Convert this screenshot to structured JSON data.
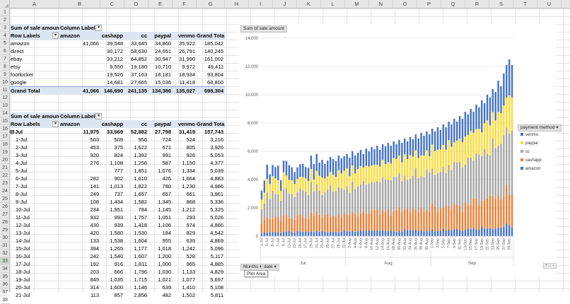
{
  "columns": [
    "A",
    "B",
    "C",
    "D",
    "E",
    "F",
    "G",
    "H",
    "I",
    "J",
    "K",
    "L",
    "M",
    "N",
    "O",
    "P",
    "Q",
    "R",
    "S",
    "T",
    "U"
  ],
  "rows": [
    "1",
    "2",
    "3",
    "4",
    "5",
    "6",
    "7",
    "8",
    "9",
    "10",
    "11",
    "12",
    "13",
    "14",
    "15",
    "16",
    "17",
    "18",
    "19",
    "20",
    "21",
    "22",
    "23",
    "24",
    "25",
    "26",
    "27",
    "28",
    "29",
    "30",
    "31",
    "32",
    "33",
    "34",
    "35",
    "36",
    "37",
    "38"
  ],
  "selected_row": "33",
  "pivot1": {
    "title": "Sum of sale amount",
    "col_labels": "Column Labels",
    "row_labels": "Row Labels",
    "headers": [
      "amazon",
      "cashapp",
      "cc",
      "paypal",
      "venmo",
      "Grand Total"
    ],
    "rows": [
      {
        "label": "amazon",
        "values": [
          "41,066",
          "39,548",
          "33,645",
          "34,860",
          "35,922",
          "185,042"
        ]
      },
      {
        "label": "direct",
        "values": [
          "",
          "30,172",
          "58,630",
          "24,651",
          "26,791",
          "140,245"
        ]
      },
      {
        "label": "ebay",
        "values": [
          "",
          "33,212",
          "64,852",
          "30,947",
          "31,990",
          "161,002"
        ]
      },
      {
        "label": "etsy",
        "values": [
          "",
          "9,550",
          "19,180",
          "10,710",
          "9,972",
          "49,411"
        ]
      },
      {
        "label": "footlocker",
        "values": [
          "",
          "19,526",
          "37,163",
          "18,181",
          "18,934",
          "93,804"
        ]
      },
      {
        "label": "google",
        "values": [
          "",
          "14,681",
          "27,665",
          "15,036",
          "11,418",
          "68,800"
        ]
      }
    ],
    "total": {
      "label": "Grand Total",
      "values": [
        "41,066",
        "146,690",
        "241,135",
        "134,386",
        "135,027",
        "698,304"
      ]
    }
  },
  "pivot2": {
    "title": "Sum of sale amount",
    "col_labels": "Column Labels",
    "row_labels": "Row Labels",
    "headers": [
      "amazon",
      "cashapp",
      "cc",
      "paypal",
      "venmo",
      "Grand Total"
    ],
    "group": {
      "label": "Jul",
      "values": [
        "11,975",
        "33,669",
        "52,882",
        "27,798",
        "31,419",
        "157,743"
      ]
    },
    "rows": [
      {
        "label": "1-Jul",
        "values": [
          "503",
          "509",
          "956",
          "724",
          "524",
          "3,216"
        ]
      },
      {
        "label": "2-Jul",
        "values": [
          "453",
          "375",
          "1,622",
          "671",
          "805",
          "3,926"
        ]
      },
      {
        "label": "3-Jul",
        "values": [
          "920",
          "824",
          "1,392",
          "991",
          "926",
          "5,053"
        ]
      },
      {
        "label": "4-Jul",
        "values": [
          "276",
          "1,108",
          "1,256",
          "587",
          "1,150",
          "4,377"
        ]
      },
      {
        "label": "5-Jul",
        "values": [
          "",
          "777",
          "1,851",
          "1,076",
          "1,334",
          "5,039"
        ]
      },
      {
        "label": "6-Jul",
        "values": [
          "282",
          "902",
          "1,610",
          "426",
          "1,664",
          "4,883"
        ]
      },
      {
        "label": "7-Jul",
        "values": [
          "141",
          "1,013",
          "1,822",
          "780",
          "1,230",
          "4,986"
        ]
      },
      {
        "label": "8-Jul",
        "values": [
          "249",
          "737",
          "1,657",
          "657",
          "661",
          "3,961"
        ]
      },
      {
        "label": "9-Jul",
        "values": [
          "108",
          "1,434",
          "1,582",
          "1,345",
          "868",
          "5,336"
        ]
      },
      {
        "label": "10-Jul",
        "values": [
          "234",
          "1,951",
          "784",
          "1,145",
          "1,212",
          "5,325"
        ]
      },
      {
        "label": "11-Jul",
        "values": [
          "932",
          "993",
          "1,757",
          "1,051",
          "293",
          "5,026"
        ]
      },
      {
        "label": "12-Jul",
        "values": [
          "430",
          "939",
          "1,418",
          "1,106",
          "974",
          "4,866"
        ]
      },
      {
        "label": "13-Jul",
        "values": [
          "420",
          "1,580",
          "1,530",
          "184",
          "829",
          "4,542"
        ]
      },
      {
        "label": "14-Jul",
        "values": [
          "133",
          "1,538",
          "1,604",
          "955",
          "639",
          "4,869"
        ]
      },
      {
        "label": "15-Jul",
        "values": [
          "394",
          "1,265",
          "1,177",
          "1,018",
          "1,242",
          "5,096"
        ]
      },
      {
        "label": "16-Jul",
        "values": [
          "242",
          "1,540",
          "1,607",
          "1,200",
          "528",
          "5,117"
        ]
      },
      {
        "label": "17-Jul",
        "values": [
          "192",
          "916",
          "1,811",
          "1,000",
          "965",
          "4,885"
        ]
      },
      {
        "label": "18-Jul",
        "values": [
          "203",
          "666",
          "1,796",
          "1,030",
          "1,133",
          "4,829"
        ]
      },
      {
        "label": "19-Jul",
        "values": [
          "849",
          "1,035",
          "1,715",
          "1,021",
          "1,077",
          "5,697"
        ]
      },
      {
        "label": "20-Jul",
        "values": [
          "314",
          "1,600",
          "1,146",
          "639",
          "1,410",
          "5,108"
        ]
      },
      {
        "label": "21-Jul",
        "values": [
          "113",
          "857",
          "2,856",
          "482",
          "1,502",
          "5,811"
        ]
      }
    ]
  },
  "chart": {
    "field_button_values": "Sum of sale amount",
    "field_button_axis": "Months",
    "field_button_axis2": "date",
    "legend_title": "payment method",
    "tooltip": "Plot Area",
    "colors": {
      "venmo": "#4472c4",
      "paypal": "#ffd92f",
      "cc": "#a5a5a5",
      "cashapp": "#ed7d31",
      "amazon": "#4472c4"
    }
  },
  "chart_data": {
    "type": "bar",
    "stacked": true,
    "ylim": [
      0,
      14000
    ],
    "yticks": [
      "0",
      "2,000",
      "4,000",
      "6,000",
      "8,000",
      "10,000",
      "12,000",
      "14,000"
    ],
    "ytick_values": [
      0,
      2000,
      4000,
      6000,
      8000,
      10000,
      12000,
      14000
    ],
    "month_labels": [
      "Jul",
      "Aug",
      "Sep"
    ],
    "day_labels": [
      "1-Jul",
      "3-Jul",
      "5-Jul",
      "7-Jul",
      "9-Jul",
      "11-Jul",
      "13-Jul",
      "15-Jul",
      "17-Jul",
      "19-Jul",
      "21-Jul",
      "23-Jul",
      "25-Jul",
      "27-Jul",
      "29-Jul",
      "31-Jul",
      "2-Aug",
      "4-Aug",
      "6-Aug",
      "8-Aug",
      "10-Aug",
      "12-Aug",
      "14-Aug",
      "16-Aug",
      "18-Aug",
      "20-Aug",
      "22-Aug",
      "24-Aug",
      "26-Aug",
      "28-Aug",
      "30-Aug",
      "1-Sep",
      "3-Sep",
      "5-Sep",
      "7-Sep",
      "9-Sep",
      "11-Sep",
      "13-Sep",
      "15-Sep",
      "17-Sep",
      "19-Sep",
      "21-Sep",
      "23-Sep",
      "25-Sep",
      "27-Sep",
      "29-Sep"
    ],
    "legend": [
      {
        "name": "venmo",
        "color": "#4472c4"
      },
      {
        "name": "paypal",
        "color": "#ffd92f"
      },
      {
        "name": "cc",
        "color": "#a5a5a5"
      },
      {
        "name": "cashapp",
        "color": "#ed7d31"
      },
      {
        "name": "amazon",
        "color": "#4472c4"
      }
    ],
    "series_order": [
      "amazon",
      "cashapp",
      "cc",
      "paypal",
      "venmo"
    ],
    "series_colors": [
      "#4472c4",
      "#ed7d31",
      "#a5a5a5",
      "#ffd92f",
      "#4472c4"
    ],
    "days": 92,
    "totals": [
      3216,
      3926,
      5053,
      4377,
      5039,
      4883,
      4986,
      3961,
      5336,
      5325,
      5026,
      4866,
      4542,
      4869,
      5096,
      5117,
      4885,
      4829,
      5697,
      5108,
      5811,
      5200,
      5400,
      5100,
      5350,
      5600,
      5450,
      5300,
      5700,
      5500,
      5650,
      5800,
      5550,
      6000,
      5700,
      5900,
      6100,
      5800,
      6200,
      6000,
      6300,
      6150,
      6400,
      6100,
      6500,
      6350,
      6600,
      6400,
      6700,
      6500,
      6800,
      6600,
      6900,
      6700,
      7000,
      6850,
      7200,
      6900,
      7300,
      7100,
      7400,
      7200,
      7600,
      7400,
      7700,
      7500,
      7900,
      7700,
      8100,
      7900,
      8300,
      8100,
      8500,
      8300,
      8800,
      8600,
      9000,
      8800,
      9300,
      9100,
      9600,
      9400,
      10000,
      9800,
      10400,
      10200,
      11000,
      10600,
      11500,
      12100,
      12500,
      12100
    ],
    "fractions": {
      "amazon": 0.06,
      "cashapp": 0.21,
      "cc": 0.34,
      "paypal": 0.2,
      "venmo": 0.19
    }
  }
}
